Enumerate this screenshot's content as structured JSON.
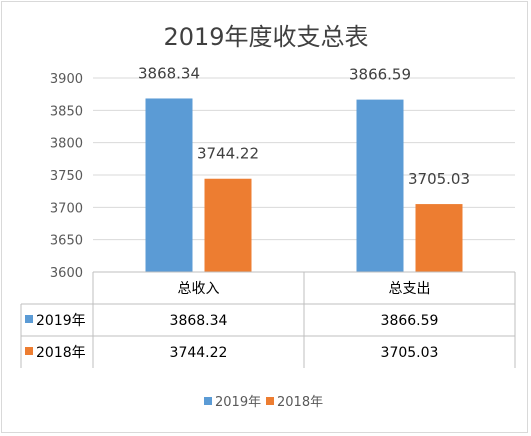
{
  "chart_data": {
    "type": "bar",
    "title": "2019年度收支总表",
    "categories": [
      "总收入",
      "总支出"
    ],
    "series": [
      {
        "name": "2019年",
        "values": [
          3868.34,
          3866.59
        ],
        "labels": [
          "3868.34",
          "3866.59"
        ],
        "color": "#5b9bd5"
      },
      {
        "name": "2018年",
        "values": [
          3744.22,
          3705.03
        ],
        "labels": [
          "3744.22",
          "3705.03"
        ],
        "color": "#ed7d31"
      }
    ],
    "ylim": [
      3600,
      3900
    ],
    "yticks": [
      3600,
      3650,
      3700,
      3750,
      3800,
      3850,
      3900
    ],
    "grid": true,
    "data_table": true,
    "legend": "bottom"
  }
}
